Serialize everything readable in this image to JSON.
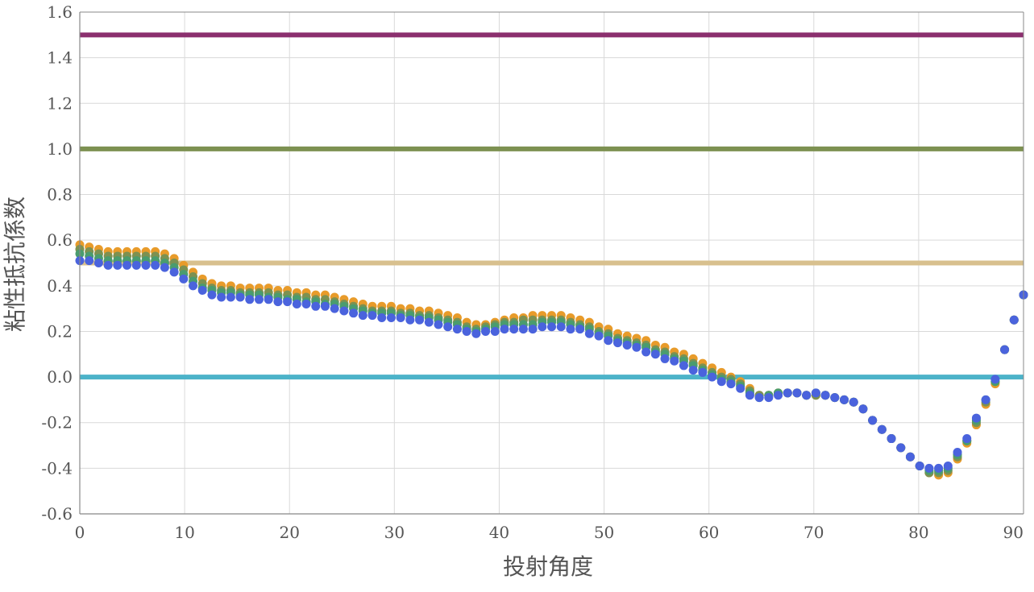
{
  "chart_data": {
    "type": "scatter",
    "title": "",
    "xlabel": "投射角度",
    "ylabel": "粘性抵抗係数",
    "xlim": [
      0,
      90
    ],
    "ylim": [
      -0.6,
      1.6
    ],
    "x_ticks": [
      0,
      10,
      20,
      30,
      40,
      50,
      60,
      70,
      80,
      90
    ],
    "x_tick_labels": [
      "0",
      "10",
      "20",
      "30",
      "40",
      "50",
      "60",
      "70",
      "80",
      "90"
    ],
    "y_ticks": [
      -0.6,
      -0.4,
      -0.2,
      0.0,
      0.2,
      0.4,
      0.6,
      0.8,
      1.0,
      1.2,
      1.4,
      1.6
    ],
    "y_tick_labels": [
      "-0.6",
      "-0.4",
      "-0.2",
      "0.0",
      "0.2",
      "0.4",
      "0.6",
      "0.8",
      "1.0",
      "1.2",
      "1.4",
      "1.6"
    ],
    "grid": true,
    "legend": "none",
    "reference_lines": [
      {
        "y": 1.5,
        "color": "#8b2f6e"
      },
      {
        "y": 1.0,
        "color": "#7d9151"
      },
      {
        "y": 0.5,
        "color": "#d8c08e"
      },
      {
        "y": 0.0,
        "color": "#4cb3c9"
      }
    ],
    "series": [
      {
        "color": "#e89b2a",
        "x": [
          0,
          0.9,
          1.8,
          2.7,
          3.6,
          4.5,
          5.4,
          6.3,
          7.2,
          8.1,
          9.0,
          9.9,
          10.8,
          11.7,
          12.6,
          13.5,
          14.4,
          15.3,
          16.2,
          17.1,
          18.0,
          18.9,
          19.8,
          20.7,
          21.6,
          22.5,
          23.4,
          24.3,
          25.2,
          26.1,
          27.0,
          27.9,
          28.8,
          29.7,
          30.6,
          31.5,
          32.4,
          33.3,
          34.2,
          35.1,
          36.0,
          36.9,
          37.8,
          38.7,
          39.6,
          40.5,
          41.4,
          42.3,
          43.2,
          44.1,
          45.0,
          45.9,
          46.8,
          47.7,
          48.6,
          49.5,
          50.4,
          51.3,
          52.2,
          53.1,
          54.0,
          54.9,
          55.8,
          56.7,
          57.6,
          58.5,
          59.4,
          60.3,
          61.2,
          62.1,
          63.0,
          63.9,
          64.8,
          65.7,
          66.6,
          67.5,
          68.4,
          69.3,
          70.2,
          71.1,
          72.0,
          72.9,
          73.8,
          74.7,
          75.6,
          76.5,
          77.4,
          78.3,
          79.2,
          80.1,
          81.0,
          81.9,
          82.8,
          83.7,
          84.6,
          85.5,
          86.4,
          87.3,
          88.2,
          89.1,
          90.0
        ],
        "y": [
          0.58,
          0.57,
          0.56,
          0.55,
          0.55,
          0.55,
          0.55,
          0.55,
          0.55,
          0.54,
          0.52,
          0.49,
          0.46,
          0.43,
          0.41,
          0.4,
          0.4,
          0.39,
          0.39,
          0.39,
          0.39,
          0.38,
          0.38,
          0.37,
          0.37,
          0.36,
          0.36,
          0.35,
          0.34,
          0.33,
          0.32,
          0.31,
          0.31,
          0.31,
          0.3,
          0.3,
          0.29,
          0.29,
          0.28,
          0.27,
          0.26,
          0.24,
          0.23,
          0.23,
          0.24,
          0.25,
          0.26,
          0.26,
          0.27,
          0.27,
          0.27,
          0.27,
          0.26,
          0.25,
          0.24,
          0.22,
          0.21,
          0.19,
          0.18,
          0.17,
          0.16,
          0.14,
          0.13,
          0.11,
          0.1,
          0.08,
          0.06,
          0.04,
          0.02,
          0.0,
          -0.02,
          -0.05,
          -0.08,
          -0.08,
          -0.07,
          -0.07,
          -0.07,
          -0.08,
          -0.08,
          -0.08,
          -0.09,
          -0.1,
          -0.11,
          -0.14,
          -0.19,
          -0.23,
          -0.27,
          -0.31,
          -0.35,
          -0.39,
          -0.42,
          -0.43,
          -0.42,
          -0.36,
          -0.29,
          -0.21,
          -0.12,
          -0.03,
          0.12,
          0.25,
          0.36
        ]
      },
      {
        "color": "#7d9151",
        "x": [
          0,
          0.9,
          1.8,
          2.7,
          3.6,
          4.5,
          5.4,
          6.3,
          7.2,
          8.1,
          9.0,
          9.9,
          10.8,
          11.7,
          12.6,
          13.5,
          14.4,
          15.3,
          16.2,
          17.1,
          18.0,
          18.9,
          19.8,
          20.7,
          21.6,
          22.5,
          23.4,
          24.3,
          25.2,
          26.1,
          27.0,
          27.9,
          28.8,
          29.7,
          30.6,
          31.5,
          32.4,
          33.3,
          34.2,
          35.1,
          36.0,
          36.9,
          37.8,
          38.7,
          39.6,
          40.5,
          41.4,
          42.3,
          43.2,
          44.1,
          45.0,
          45.9,
          46.8,
          47.7,
          48.6,
          49.5,
          50.4,
          51.3,
          52.2,
          53.1,
          54.0,
          54.9,
          55.8,
          56.7,
          57.6,
          58.5,
          59.4,
          60.3,
          61.2,
          62.1,
          63.0,
          63.9,
          64.8,
          65.7,
          66.6,
          67.5,
          68.4,
          69.3,
          70.2,
          71.1,
          72.0,
          72.9,
          73.8,
          74.7,
          75.6,
          76.5,
          77.4,
          78.3,
          79.2,
          80.1,
          81.0,
          81.9,
          82.8,
          83.7,
          84.6,
          85.5,
          86.4,
          87.3,
          88.2,
          89.1,
          90.0
        ],
        "y": [
          0.56,
          0.55,
          0.54,
          0.53,
          0.53,
          0.53,
          0.53,
          0.53,
          0.53,
          0.52,
          0.5,
          0.47,
          0.44,
          0.41,
          0.39,
          0.38,
          0.38,
          0.37,
          0.37,
          0.37,
          0.37,
          0.36,
          0.36,
          0.35,
          0.35,
          0.34,
          0.34,
          0.33,
          0.32,
          0.31,
          0.3,
          0.29,
          0.29,
          0.29,
          0.28,
          0.28,
          0.27,
          0.27,
          0.26,
          0.25,
          0.24,
          0.22,
          0.21,
          0.22,
          0.23,
          0.24,
          0.24,
          0.25,
          0.25,
          0.25,
          0.25,
          0.25,
          0.24,
          0.23,
          0.22,
          0.2,
          0.19,
          0.17,
          0.16,
          0.15,
          0.14,
          0.12,
          0.11,
          0.09,
          0.08,
          0.06,
          0.04,
          0.02,
          0.0,
          -0.01,
          -0.03,
          -0.06,
          -0.08,
          -0.08,
          -0.07,
          -0.07,
          -0.07,
          -0.08,
          -0.08,
          -0.08,
          -0.09,
          -0.1,
          -0.11,
          -0.14,
          -0.19,
          -0.23,
          -0.27,
          -0.31,
          -0.35,
          -0.39,
          -0.42,
          -0.42,
          -0.41,
          -0.35,
          -0.28,
          -0.2,
          -0.11,
          -0.02,
          0.12,
          0.25,
          0.36
        ]
      },
      {
        "color": "#4a9c6e",
        "x": [
          0,
          0.9,
          1.8,
          2.7,
          3.6,
          4.5,
          5.4,
          6.3,
          7.2,
          8.1,
          9.0,
          9.9,
          10.8,
          11.7,
          12.6,
          13.5,
          14.4,
          15.3,
          16.2,
          17.1,
          18.0,
          18.9,
          19.8,
          20.7,
          21.6,
          22.5,
          23.4,
          24.3,
          25.2,
          26.1,
          27.0,
          27.9,
          28.8,
          29.7,
          30.6,
          31.5,
          32.4,
          33.3,
          34.2,
          35.1,
          36.0,
          36.9,
          37.8,
          38.7,
          39.6,
          40.5,
          41.4,
          42.3,
          43.2,
          44.1,
          45.0,
          45.9,
          46.8,
          47.7,
          48.6,
          49.5,
          50.4,
          51.3,
          52.2,
          53.1,
          54.0,
          54.9,
          55.8,
          56.7,
          57.6,
          58.5,
          59.4,
          60.3,
          61.2,
          62.1,
          63.0,
          63.9,
          64.8,
          65.7,
          66.6,
          67.5,
          68.4,
          69.3,
          70.2,
          71.1,
          72.0,
          72.9,
          73.8,
          74.7,
          75.6,
          76.5,
          77.4,
          78.3,
          79.2,
          80.1,
          81.0,
          81.9,
          82.8,
          83.7,
          84.6,
          85.5,
          86.4,
          87.3,
          88.2,
          89.1,
          90.0
        ],
        "y": [
          0.54,
          0.53,
          0.52,
          0.51,
          0.51,
          0.51,
          0.51,
          0.51,
          0.51,
          0.5,
          0.48,
          0.45,
          0.42,
          0.39,
          0.38,
          0.37,
          0.37,
          0.36,
          0.36,
          0.36,
          0.35,
          0.35,
          0.34,
          0.34,
          0.33,
          0.33,
          0.32,
          0.32,
          0.31,
          0.3,
          0.29,
          0.28,
          0.28,
          0.28,
          0.27,
          0.27,
          0.26,
          0.26,
          0.25,
          0.24,
          0.23,
          0.21,
          0.2,
          0.21,
          0.22,
          0.23,
          0.23,
          0.23,
          0.23,
          0.24,
          0.24,
          0.24,
          0.23,
          0.22,
          0.21,
          0.19,
          0.18,
          0.16,
          0.15,
          0.14,
          0.13,
          0.11,
          0.1,
          0.08,
          0.07,
          0.05,
          0.03,
          0.01,
          -0.01,
          -0.02,
          -0.04,
          -0.07,
          -0.09,
          -0.08,
          -0.07,
          -0.07,
          -0.07,
          -0.08,
          -0.07,
          -0.08,
          -0.09,
          -0.1,
          -0.11,
          -0.14,
          -0.19,
          -0.23,
          -0.27,
          -0.31,
          -0.35,
          -0.39,
          -0.41,
          -0.41,
          -0.4,
          -0.34,
          -0.28,
          -0.19,
          -0.1,
          -0.02,
          0.12,
          0.25,
          0.36
        ]
      },
      {
        "color": "#4a63dd",
        "x": [
          0,
          0.9,
          1.8,
          2.7,
          3.6,
          4.5,
          5.4,
          6.3,
          7.2,
          8.1,
          9.0,
          9.9,
          10.8,
          11.7,
          12.6,
          13.5,
          14.4,
          15.3,
          16.2,
          17.1,
          18.0,
          18.9,
          19.8,
          20.7,
          21.6,
          22.5,
          23.4,
          24.3,
          25.2,
          26.1,
          27.0,
          27.9,
          28.8,
          29.7,
          30.6,
          31.5,
          32.4,
          33.3,
          34.2,
          35.1,
          36.0,
          36.9,
          37.8,
          38.7,
          39.6,
          40.5,
          41.4,
          42.3,
          43.2,
          44.1,
          45.0,
          45.9,
          46.8,
          47.7,
          48.6,
          49.5,
          50.4,
          51.3,
          52.2,
          53.1,
          54.0,
          54.9,
          55.8,
          56.7,
          57.6,
          58.5,
          59.4,
          60.3,
          61.2,
          62.1,
          63.0,
          63.9,
          64.8,
          65.7,
          66.6,
          67.5,
          68.4,
          69.3,
          70.2,
          71.1,
          72.0,
          72.9,
          73.8,
          74.7,
          75.6,
          76.5,
          77.4,
          78.3,
          79.2,
          80.1,
          81.0,
          81.9,
          82.8,
          83.7,
          84.6,
          85.5,
          86.4,
          87.3,
          88.2,
          89.1,
          90.0
        ],
        "y": [
          0.51,
          0.51,
          0.5,
          0.49,
          0.49,
          0.49,
          0.49,
          0.49,
          0.49,
          0.48,
          0.46,
          0.43,
          0.4,
          0.38,
          0.36,
          0.35,
          0.35,
          0.35,
          0.34,
          0.34,
          0.34,
          0.33,
          0.33,
          0.32,
          0.32,
          0.31,
          0.31,
          0.3,
          0.29,
          0.28,
          0.27,
          0.27,
          0.26,
          0.26,
          0.26,
          0.25,
          0.25,
          0.24,
          0.23,
          0.22,
          0.21,
          0.2,
          0.19,
          0.2,
          0.2,
          0.21,
          0.21,
          0.21,
          0.21,
          0.22,
          0.22,
          0.22,
          0.21,
          0.21,
          0.19,
          0.18,
          0.16,
          0.15,
          0.14,
          0.13,
          0.11,
          0.1,
          0.08,
          0.07,
          0.05,
          0.03,
          0.02,
          0.0,
          -0.02,
          -0.03,
          -0.05,
          -0.08,
          -0.09,
          -0.09,
          -0.08,
          -0.07,
          -0.07,
          -0.08,
          -0.07,
          -0.08,
          -0.09,
          -0.1,
          -0.11,
          -0.14,
          -0.19,
          -0.23,
          -0.27,
          -0.31,
          -0.35,
          -0.39,
          -0.4,
          -0.4,
          -0.39,
          -0.33,
          -0.27,
          -0.18,
          -0.1,
          -0.01,
          0.12,
          0.25,
          0.36
        ]
      }
    ]
  }
}
